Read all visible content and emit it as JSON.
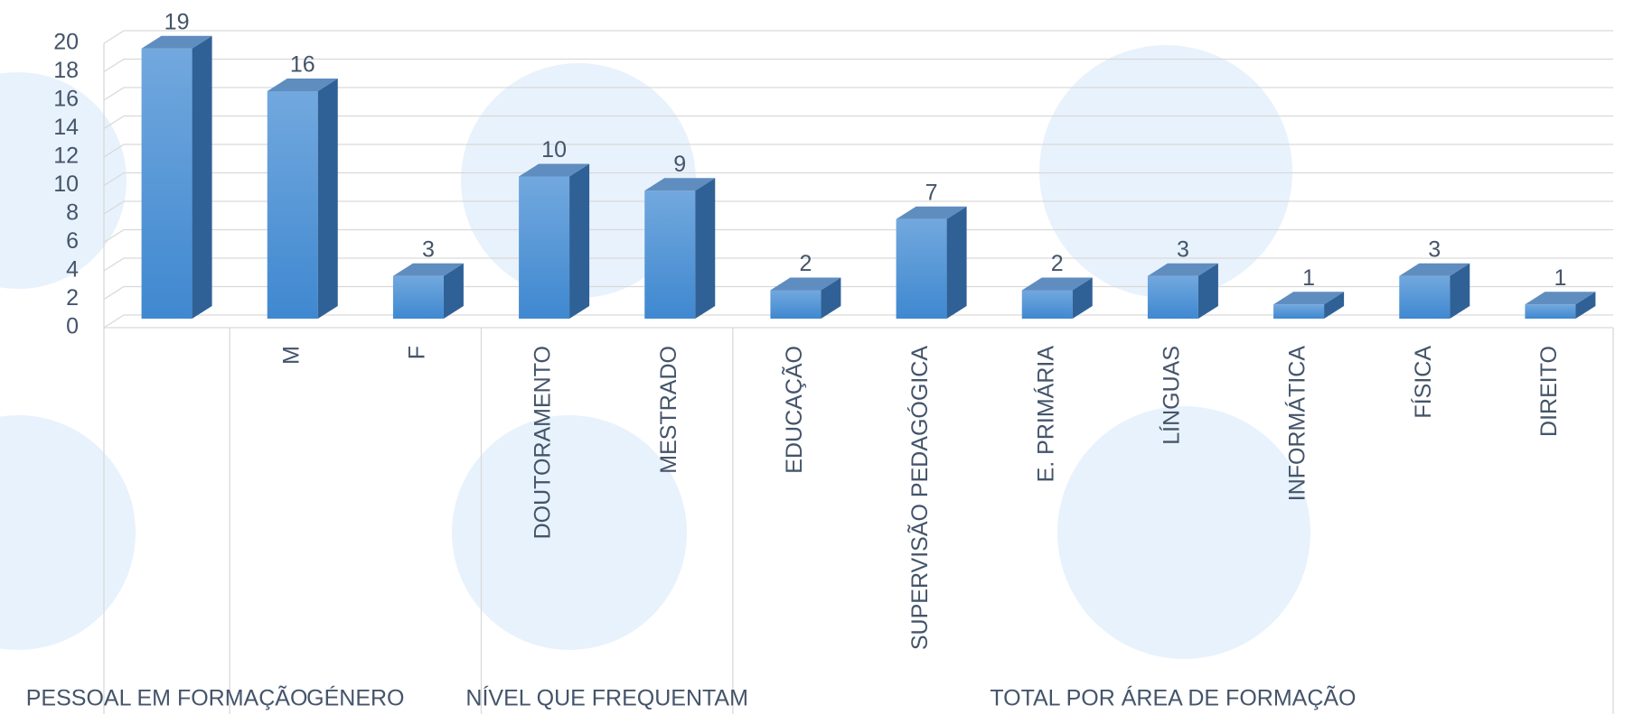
{
  "chart_data": {
    "type": "bar3d",
    "categories": [
      null,
      "M",
      "F",
      "DOUTORAMENTO",
      "MESTRADO",
      "EDUCAÇÃO",
      "SUPERVISÃO PEDAGÓGICA",
      "E. PRIMÁRIA",
      "LÍNGUAS",
      "INFORMÁTICA",
      "FÍSICA",
      "DIREITO"
    ],
    "values": [
      19,
      16,
      3,
      10,
      9,
      2,
      7,
      2,
      3,
      1,
      3,
      1
    ],
    "groups": [
      {
        "name": "PESSOAL EM FORMAÇÃO",
        "size": 1
      },
      {
        "name": "GÉNERO",
        "size": 2
      },
      {
        "name": "NÍVEL QUE FREQUENTAM",
        "size": 2
      },
      {
        "name": "TOTAL POR ÁREA DE FORMAÇÃO",
        "size": 7
      }
    ],
    "color": "#5b9bd5",
    "ylim": [
      0,
      20
    ],
    "yticks": [
      0,
      2,
      4,
      6,
      8,
      10,
      12,
      14,
      16,
      18,
      20
    ],
    "grid": true
  }
}
